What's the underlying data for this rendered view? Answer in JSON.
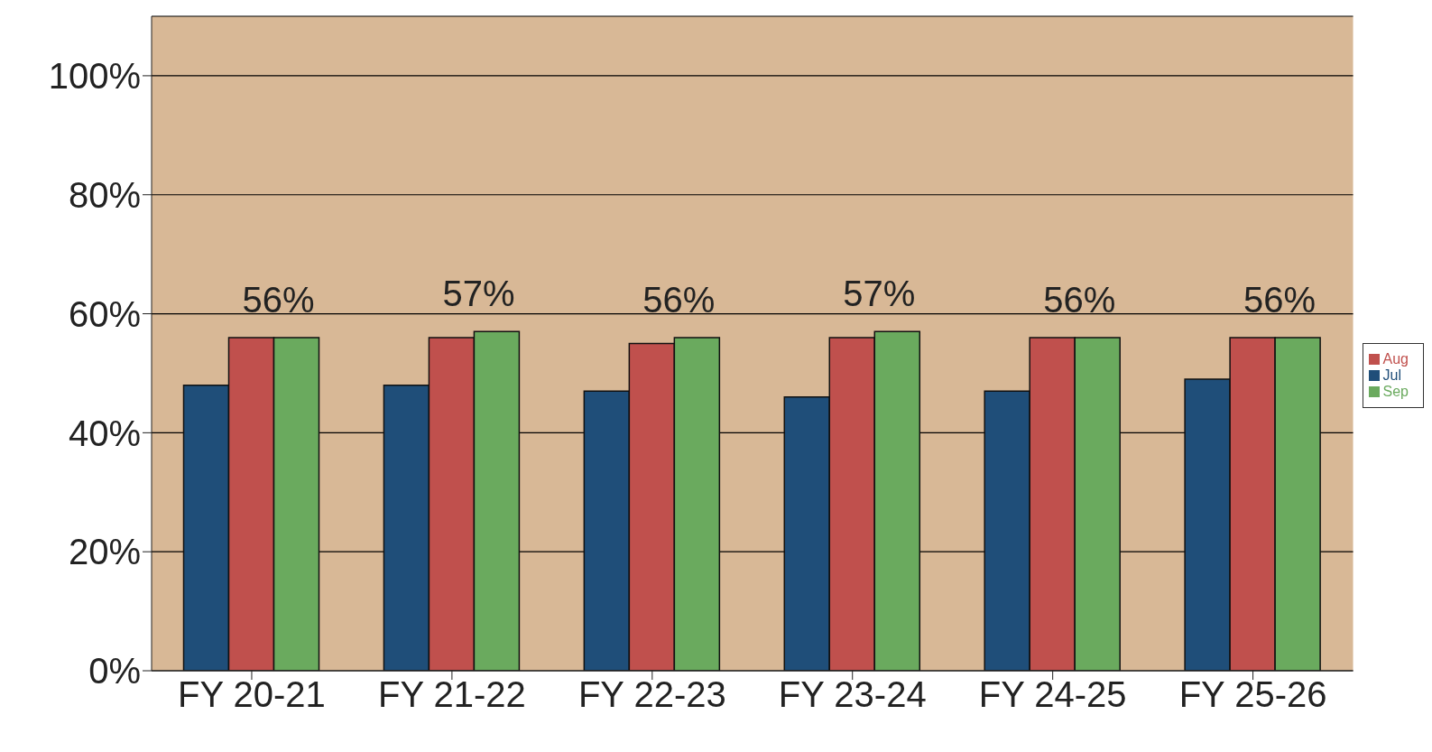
{
  "chart_data": {
    "type": "bar",
    "categories": [
      "FY 20-21",
      "FY 21-22",
      "FY 22-23",
      "FY 23-24",
      "FY 24-25",
      "FY 25-26"
    ],
    "series": [
      {
        "name": "Jul",
        "color": "#1f4e79",
        "values": [
          48,
          48,
          47,
          46,
          47,
          49
        ]
      },
      {
        "name": "Aug",
        "color": "#c0504d",
        "values": [
          56,
          56,
          55,
          56,
          56,
          56
        ]
      },
      {
        "name": "Sep",
        "color": "#6aaa5e",
        "values": [
          56,
          57,
          56,
          57,
          56,
          56
        ],
        "value_labels": [
          "56%",
          "57%",
          "56%",
          "57%",
          "56%",
          "56%"
        ]
      }
    ],
    "ylim": [
      0,
      110
    ],
    "yticks": [
      {
        "value": 0,
        "label": "0%"
      },
      {
        "value": 20,
        "label": "20%"
      },
      {
        "value": 40,
        "label": "40%"
      },
      {
        "value": 60,
        "label": "60%"
      },
      {
        "value": 80,
        "label": "80%"
      },
      {
        "value": 100,
        "label": "100%"
      }
    ],
    "grid": "y",
    "legend": "right"
  }
}
